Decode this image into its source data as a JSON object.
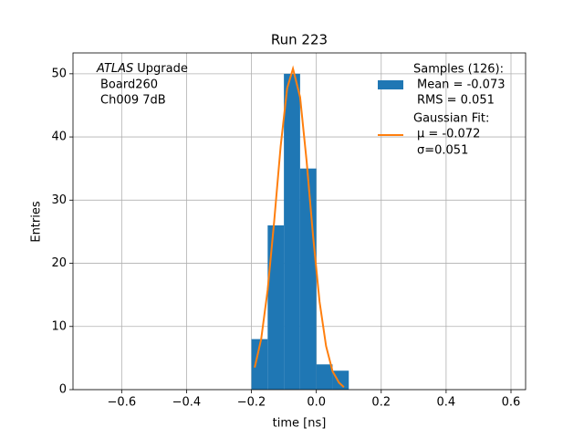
{
  "chart_data": {
    "type": "histogram",
    "title": "Run 223",
    "xlabel": "time [ns]",
    "ylabel": "Entries",
    "bins": [
      -0.2,
      -0.15,
      -0.1,
      -0.05,
      0.0,
      0.05,
      0.1
    ],
    "values": [
      8,
      26,
      50,
      35,
      4,
      3
    ],
    "color": "#1f77b4",
    "name": "Samples (126):",
    "legend_lines": [
      "Mean = -0.073",
      "RMS = 0.051"
    ],
    "fit": {
      "type": "line",
      "name": "Gaussian Fit:",
      "legend_lines": [
        "μ = -0.072",
        "σ=0.051"
      ],
      "color": "#ff7f0e",
      "x": [
        -0.19,
        -0.17,
        -0.15,
        -0.13,
        -0.11,
        -0.09,
        -0.072,
        -0.05,
        -0.03,
        -0.01,
        0.01,
        0.03,
        0.05,
        0.07,
        0.085
      ],
      "values": [
        3.5,
        8.0,
        15.8,
        26.6,
        38.5,
        47.7,
        50.8,
        46.3,
        36.2,
        24.3,
        13.9,
        6.9,
        2.9,
        1.1,
        0.4
      ]
    },
    "annotation": {
      "experiment": "ATLAS",
      "label": "Upgrade",
      "lines": [
        "Board260",
        "Ch009 7dB"
      ]
    },
    "xlim": [
      -0.75,
      0.645
    ],
    "ylim": [
      0,
      53.3
    ],
    "xticks": [
      {
        "value": -0.6,
        "label": "−0.6"
      },
      {
        "value": -0.4,
        "label": "−0.4"
      },
      {
        "value": -0.2,
        "label": "−0.2"
      },
      {
        "value": 0,
        "label": "0.0"
      },
      0.2,
      0.4,
      0.6
    ],
    "yticks": [
      0,
      10,
      20,
      30,
      40,
      50
    ],
    "grid": true,
    "legend": "upper right"
  }
}
